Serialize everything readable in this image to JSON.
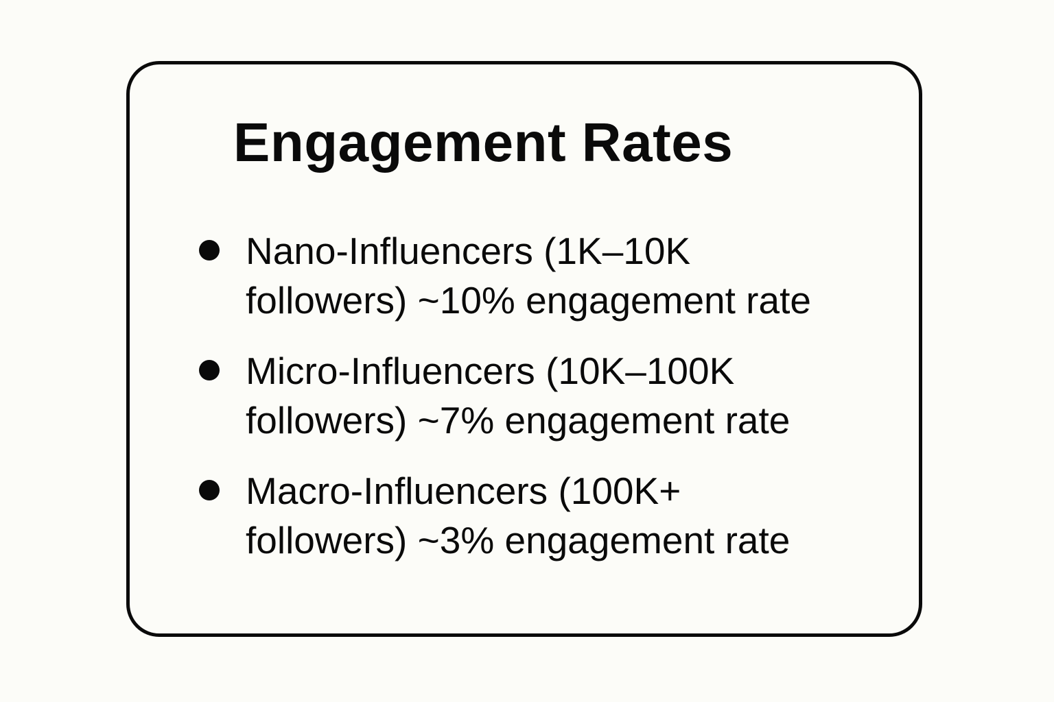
{
  "card": {
    "title": "Engagement Rates",
    "items": [
      {
        "line1": "Nano-Influencers (1K–10K",
        "line2": "followers) ~10% engagement rate"
      },
      {
        "line1": "Micro-Influencers (10K–100K",
        "line2": "followers) ~7% engagement rate"
      },
      {
        "line1": "Macro-Influencers (100K+",
        "line2": "followers) ~3% engagement rate"
      }
    ]
  },
  "colors": {
    "background": "#fcfcf8",
    "foreground": "#0a0a0a"
  }
}
